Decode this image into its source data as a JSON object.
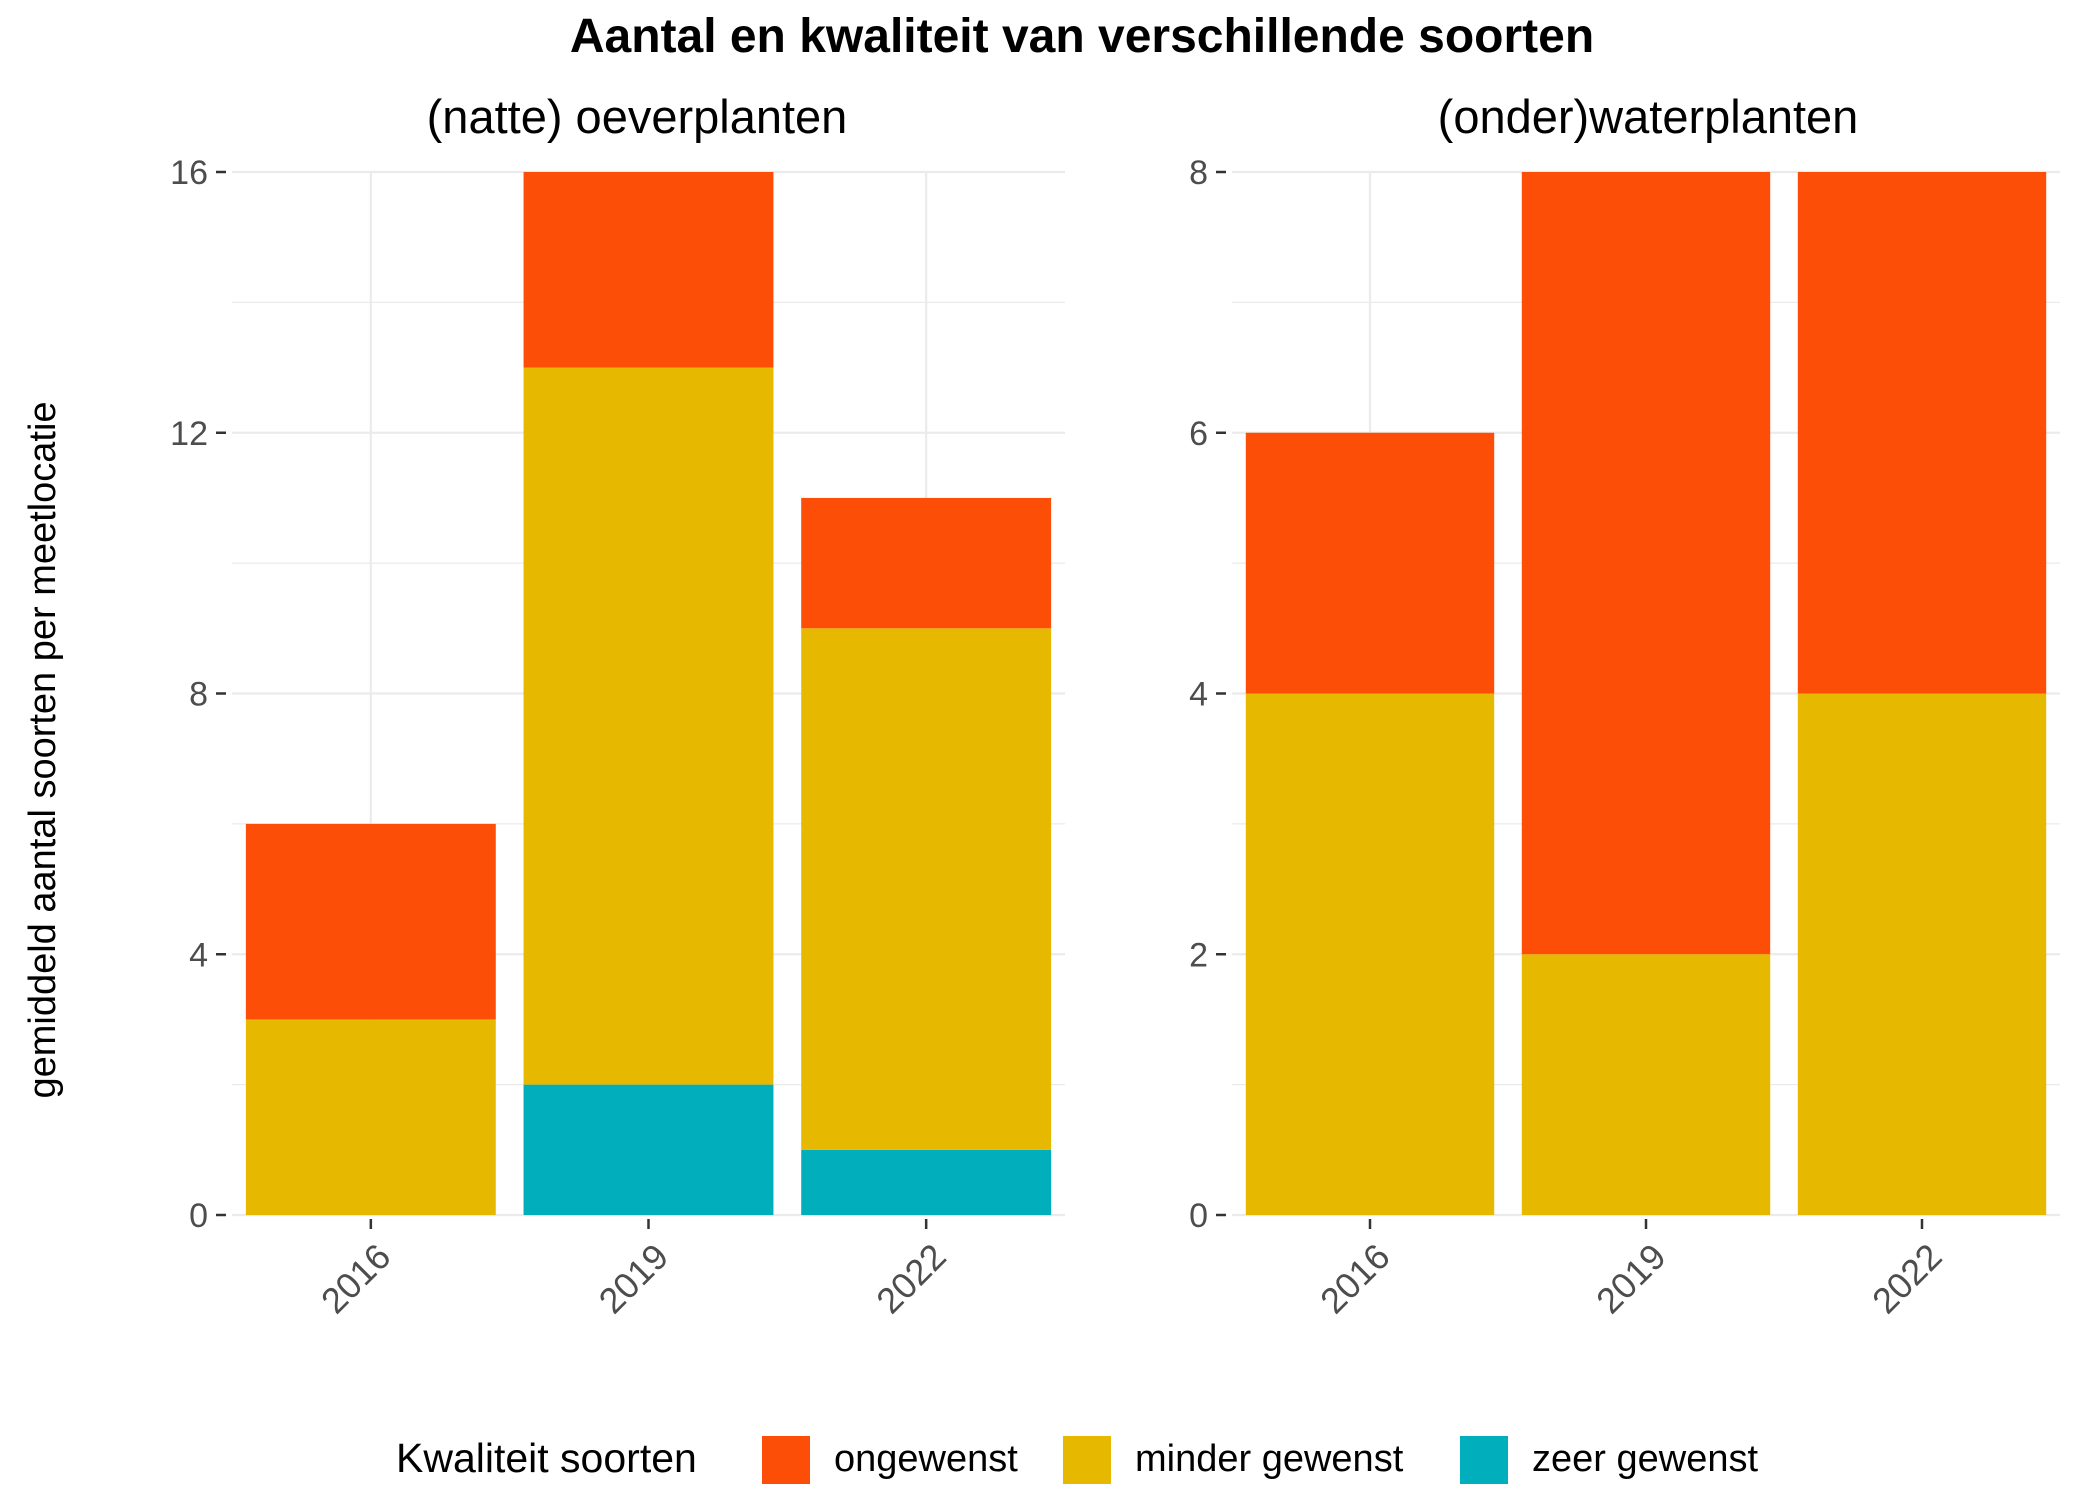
{
  "title": "Aantal en kwaliteit van verschillende soorten",
  "ylabel": "gemiddeld aantal soorten per meetlocatie",
  "legend": {
    "title": "Kwaliteit soorten",
    "items": [
      {
        "label": "ongewenst",
        "color": "#FC4E07"
      },
      {
        "label": "minder gewenst",
        "color": "#E7B800"
      },
      {
        "label": "zeer gewenst",
        "color": "#00AFBB"
      }
    ]
  },
  "chart_data": [
    {
      "type": "bar",
      "stacked": true,
      "title": "(natte) oeverplanten",
      "categories": [
        "2016",
        "2019",
        "2022"
      ],
      "series": [
        {
          "name": "zeer gewenst",
          "color": "#00AFBB",
          "values": [
            0,
            2,
            1
          ]
        },
        {
          "name": "minder gewenst",
          "color": "#E7B800",
          "values": [
            3,
            11,
            8
          ]
        },
        {
          "name": "ongewenst",
          "color": "#FC4E07",
          "values": [
            3,
            3,
            2
          ]
        }
      ],
      "ylim": [
        0,
        16
      ],
      "yticks": [
        0,
        4,
        8,
        12,
        16
      ],
      "grid": true
    },
    {
      "type": "bar",
      "stacked": true,
      "title": "(onder)waterplanten",
      "categories": [
        "2016",
        "2019",
        "2022"
      ],
      "series": [
        {
          "name": "zeer gewenst",
          "color": "#00AFBB",
          "values": [
            0,
            0,
            0
          ]
        },
        {
          "name": "minder gewenst",
          "color": "#E7B800",
          "values": [
            4,
            2,
            4
          ]
        },
        {
          "name": "ongewenst",
          "color": "#FC4E07",
          "values": [
            2,
            6,
            4
          ]
        }
      ],
      "ylim": [
        0,
        8
      ],
      "yticks": [
        0,
        2,
        4,
        6,
        8
      ],
      "grid": true
    }
  ]
}
